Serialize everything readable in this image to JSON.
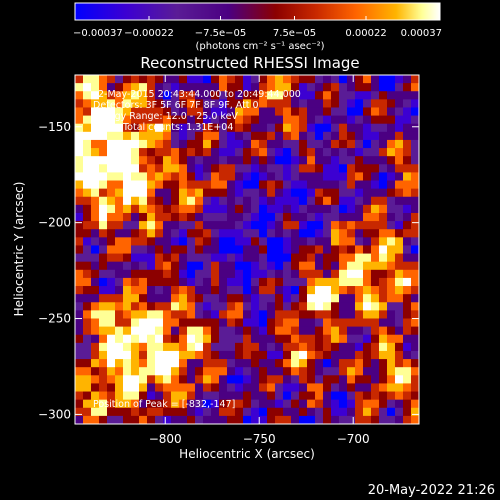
{
  "chart_data": {
    "type": "heatmap",
    "title": "Reconstructed RHESSI Image",
    "xlabel": "Heliocentric X (arcsec)",
    "ylabel": "Heliocentric Y (arcsec)",
    "xlim": [
      -848,
      -665
    ],
    "ylim": [
      -305,
      -123
    ],
    "x_ticks": [
      {
        "value": -800,
        "label": "−800"
      },
      {
        "value": -750,
        "label": "−750"
      },
      {
        "value": -700,
        "label": "−700"
      }
    ],
    "y_ticks": [
      {
        "value": -150,
        "label": "−150"
      },
      {
        "value": -200,
        "label": "−200"
      },
      {
        "value": -250,
        "label": "−250"
      },
      {
        "value": -300,
        "label": "−300"
      }
    ],
    "colorbar": {
      "min": -0.00037,
      "max": 0.00037,
      "ticks": [
        {
          "value": -0.00037,
          "label": "−0.00037"
        },
        {
          "value": -0.00022,
          "label": "−0.00022"
        },
        {
          "value": -7.5e-05,
          "label": "−7.5e−05"
        },
        {
          "value": 7.5e-05,
          "label": "7.5e−05"
        },
        {
          "value": 0.00022,
          "label": "0.00022"
        },
        {
          "value": 0.00037,
          "label": "0.00037"
        }
      ],
      "unit_label": "(photons cm⁻² s⁻¹ asec⁻²)",
      "colors": [
        "#0000ff",
        "#3c00d2",
        "#5a1c96",
        "#4b0082",
        "#8c0000",
        "#c82800",
        "#ff6400",
        "#ffb400",
        "#ffff96",
        "#ffffff"
      ]
    },
    "annotations": {
      "time_range": "2-May-2015 20:43:44.000 to 20:49:44.000",
      "detectors": "Detectors: 3F 5F 6F 7F 8F 9F, Att 0",
      "energy_range": "Energy Range: 12.0 - 25.0 keV",
      "method_counts": "Clean    Total counts: 1.31E+04",
      "peak_position": "Position of Peak = [-832,-147]"
    },
    "grid": false
  },
  "footer": {
    "timestamp": "20-May-2022 21:26"
  }
}
